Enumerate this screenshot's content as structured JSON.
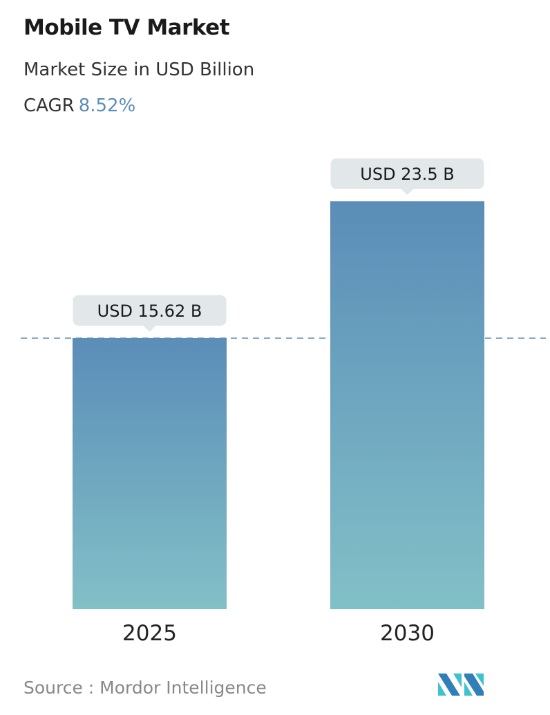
{
  "header": {
    "title": "Mobile TV Market",
    "subtitle": "Market Size in USD Billion",
    "cagr_label": "CAGR",
    "cagr_value": "8.52%"
  },
  "chart_data": {
    "type": "bar",
    "title": "Mobile TV Market",
    "subtitle": "Market Size in USD Billion",
    "categories": [
      "2025",
      "2030"
    ],
    "values": [
      15.62,
      23.5
    ],
    "data_labels": [
      "USD 15.62 B",
      "USD 23.5 B"
    ],
    "reference_line": {
      "value": 15.62,
      "style": "dashed"
    },
    "grid": false,
    "colors": {
      "bar_top": "#5b8db8",
      "bar_bottom": "#82c0c7",
      "label_bg": "#e2e8ea",
      "ref_line": "#5b8db8"
    }
  },
  "footer": {
    "source": "Source :  Mordor Intelligence",
    "logo_text": "Mordor Intelligence"
  }
}
